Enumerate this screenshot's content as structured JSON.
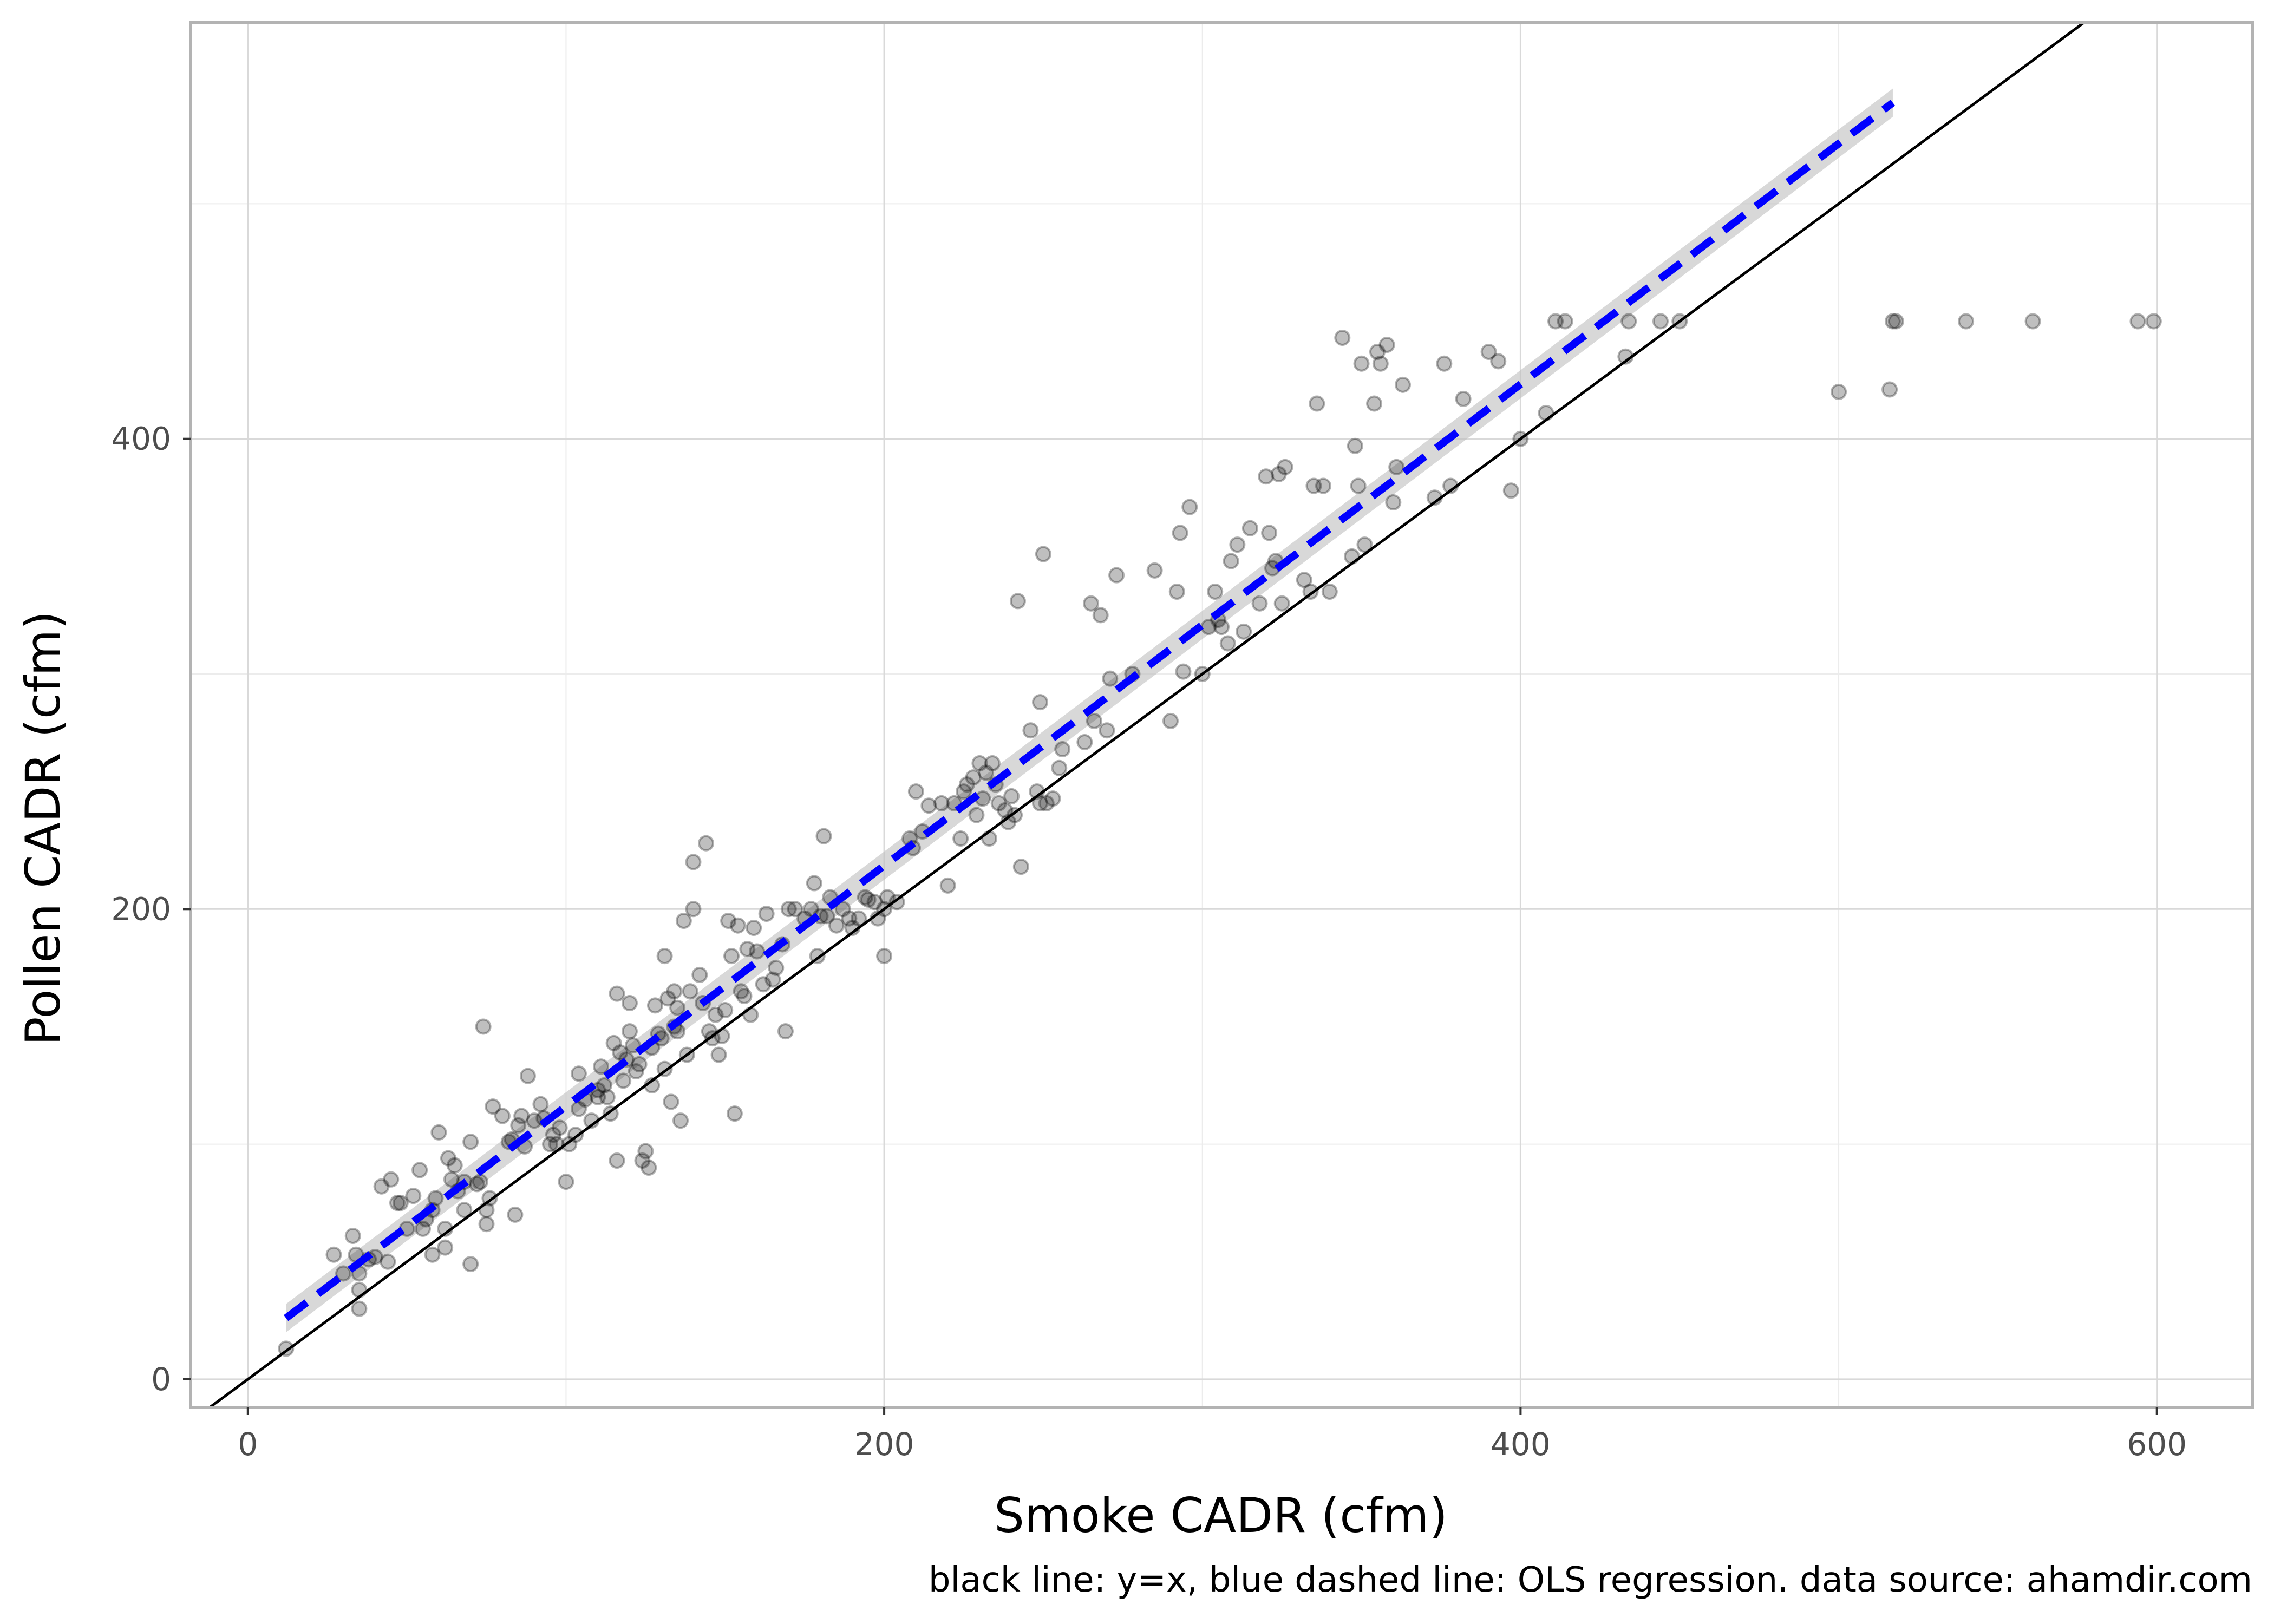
{
  "chart_data": {
    "type": "scatter",
    "xlabel": "Smoke CADR (cfm)",
    "ylabel": "Pollen CADR (cfm)",
    "caption": "black line: y=x, blue dashed line: OLS regression. data source: ahamdir.com",
    "xlim": [
      -18,
      630
    ],
    "ylim": [
      -12,
      577
    ],
    "x_ticks": [
      0,
      200,
      400,
      600
    ],
    "x_tick_labels": [
      "0",
      "200",
      "400",
      "600"
    ],
    "y_ticks": [
      0,
      200,
      400
    ],
    "y_tick_labels": [
      "0",
      "200",
      "400"
    ],
    "x_minor": [
      100,
      300,
      500
    ],
    "y_minor": [
      100,
      300,
      500
    ],
    "grid": true,
    "colors": {
      "points": "#000000",
      "identity_line": "#000000",
      "regression": "#0000ff",
      "confidence_band": "#bebebe",
      "grid": "#d9d9d9",
      "panel_border": "#b3b3b3"
    },
    "point_alpha": 0.25,
    "reference_lines": [
      {
        "label": "y=x",
        "x": [
          -18,
          577
        ],
        "y": [
          -18,
          577
        ],
        "style": "solid"
      },
      {
        "label": "OLS regression",
        "x": [
          12,
          517
        ],
        "y": [
          26,
          543
        ],
        "style": "dashed",
        "band": 6
      }
    ],
    "points": [
      [
        12,
        13
      ],
      [
        27,
        53
      ],
      [
        30,
        45
      ],
      [
        33,
        61
      ],
      [
        34,
        53
      ],
      [
        35,
        45
      ],
      [
        35,
        38
      ],
      [
        35,
        30
      ],
      [
        38,
        51
      ],
      [
        40,
        52
      ],
      [
        42,
        82
      ],
      [
        44,
        50
      ],
      [
        45,
        85
      ],
      [
        47,
        75
      ],
      [
        48,
        75
      ],
      [
        50,
        64
      ],
      [
        52,
        78
      ],
      [
        54,
        89
      ],
      [
        55,
        64
      ],
      [
        56,
        68
      ],
      [
        58,
        72
      ],
      [
        58,
        53
      ],
      [
        59,
        77
      ],
      [
        60,
        105
      ],
      [
        62,
        56
      ],
      [
        62,
        64
      ],
      [
        63,
        94
      ],
      [
        64,
        85
      ],
      [
        65,
        91
      ],
      [
        66,
        80
      ],
      [
        68,
        72
      ],
      [
        68,
        84
      ],
      [
        70,
        101
      ],
      [
        70,
        49
      ],
      [
        72,
        83
      ],
      [
        73,
        84
      ],
      [
        74,
        150
      ],
      [
        75,
        72
      ],
      [
        75,
        66
      ],
      [
        76,
        77
      ],
      [
        77,
        116
      ],
      [
        80,
        112
      ],
      [
        82,
        101
      ],
      [
        83,
        102
      ],
      [
        84,
        70
      ],
      [
        85,
        108
      ],
      [
        86,
        112
      ],
      [
        87,
        99
      ],
      [
        88,
        129
      ],
      [
        90,
        110
      ],
      [
        92,
        117
      ],
      [
        93,
        111
      ],
      [
        95,
        100
      ],
      [
        96,
        104
      ],
      [
        97,
        100
      ],
      [
        98,
        107
      ],
      [
        100,
        84
      ],
      [
        101,
        100
      ],
      [
        103,
        104
      ],
      [
        104,
        130
      ],
      [
        104,
        115
      ],
      [
        106,
        119
      ],
      [
        108,
        110
      ],
      [
        110,
        120
      ],
      [
        110,
        123
      ],
      [
        111,
        133
      ],
      [
        112,
        125
      ],
      [
        113,
        120
      ],
      [
        114,
        113
      ],
      [
        115,
        143
      ],
      [
        116,
        164
      ],
      [
        116,
        93
      ],
      [
        117,
        139
      ],
      [
        118,
        127
      ],
      [
        119,
        136
      ],
      [
        120,
        148
      ],
      [
        120,
        160
      ],
      [
        121,
        142
      ],
      [
        122,
        131
      ],
      [
        123,
        134
      ],
      [
        124,
        93
      ],
      [
        125,
        97
      ],
      [
        126,
        90
      ],
      [
        127,
        125
      ],
      [
        127,
        141
      ],
      [
        128,
        159
      ],
      [
        129,
        147
      ],
      [
        130,
        145
      ],
      [
        131,
        132
      ],
      [
        131,
        180
      ],
      [
        132,
        162
      ],
      [
        133,
        118
      ],
      [
        134,
        150
      ],
      [
        134,
        165
      ],
      [
        135,
        158
      ],
      [
        135,
        148
      ],
      [
        136,
        110
      ],
      [
        137,
        195
      ],
      [
        138,
        138
      ],
      [
        139,
        165
      ],
      [
        140,
        200
      ],
      [
        140,
        220
      ],
      [
        142,
        172
      ],
      [
        143,
        160
      ],
      [
        144,
        228
      ],
      [
        145,
        148
      ],
      [
        146,
        145
      ],
      [
        147,
        155
      ],
      [
        148,
        138
      ],
      [
        149,
        146
      ],
      [
        150,
        157
      ],
      [
        151,
        195
      ],
      [
        152,
        180
      ],
      [
        153,
        113
      ],
      [
        154,
        193
      ],
      [
        155,
        165
      ],
      [
        156,
        163
      ],
      [
        157,
        183
      ],
      [
        158,
        155
      ],
      [
        159,
        192
      ],
      [
        160,
        182
      ],
      [
        162,
        168
      ],
      [
        163,
        198
      ],
      [
        165,
        170
      ],
      [
        166,
        175
      ],
      [
        168,
        185
      ],
      [
        169,
        148
      ],
      [
        170,
        200
      ],
      [
        172,
        200
      ],
      [
        175,
        196
      ],
      [
        177,
        200
      ],
      [
        178,
        211
      ],
      [
        179,
        180
      ],
      [
        180,
        197
      ],
      [
        181,
        231
      ],
      [
        182,
        197
      ],
      [
        183,
        205
      ],
      [
        185,
        193
      ],
      [
        187,
        200
      ],
      [
        189,
        196
      ],
      [
        190,
        192
      ],
      [
        192,
        196
      ],
      [
        194,
        205
      ],
      [
        195,
        204
      ],
      [
        197,
        203
      ],
      [
        198,
        196
      ],
      [
        200,
        180
      ],
      [
        200,
        200
      ],
      [
        201,
        205
      ],
      [
        204,
        203
      ],
      [
        208,
        230
      ],
      [
        209,
        226
      ],
      [
        210,
        250
      ],
      [
        212,
        233
      ],
      [
        214,
        244
      ],
      [
        218,
        245
      ],
      [
        220,
        210
      ],
      [
        222,
        245
      ],
      [
        224,
        230
      ],
      [
        225,
        250
      ],
      [
        226,
        253
      ],
      [
        228,
        256
      ],
      [
        229,
        240
      ],
      [
        230,
        262
      ],
      [
        231,
        247
      ],
      [
        232,
        258
      ],
      [
        233,
        230
      ],
      [
        234,
        262
      ],
      [
        235,
        253
      ],
      [
        236,
        245
      ],
      [
        238,
        242
      ],
      [
        239,
        237
      ],
      [
        240,
        248
      ],
      [
        241,
        240
      ],
      [
        242,
        331
      ],
      [
        243,
        218
      ],
      [
        246,
        276
      ],
      [
        248,
        250
      ],
      [
        249,
        245
      ],
      [
        249,
        288
      ],
      [
        250,
        351
      ],
      [
        251,
        245
      ],
      [
        253,
        247
      ],
      [
        255,
        260
      ],
      [
        256,
        268
      ],
      [
        263,
        271
      ],
      [
        265,
        330
      ],
      [
        266,
        280
      ],
      [
        268,
        325
      ],
      [
        270,
        276
      ],
      [
        271,
        298
      ],
      [
        273,
        342
      ],
      [
        278,
        300
      ],
      [
        285,
        344
      ],
      [
        290,
        280
      ],
      [
        292,
        335
      ],
      [
        293,
        360
      ],
      [
        294,
        301
      ],
      [
        296,
        371
      ],
      [
        300,
        300
      ],
      [
        302,
        320
      ],
      [
        304,
        335
      ],
      [
        305,
        323
      ],
      [
        306,
        320
      ],
      [
        308,
        313
      ],
      [
        309,
        348
      ],
      [
        311,
        355
      ],
      [
        313,
        318
      ],
      [
        315,
        362
      ],
      [
        318,
        330
      ],
      [
        320,
        384
      ],
      [
        321,
        360
      ],
      [
        322,
        345
      ],
      [
        323,
        348
      ],
      [
        324,
        385
      ],
      [
        325,
        330
      ],
      [
        326,
        388
      ],
      [
        332,
        340
      ],
      [
        334,
        335
      ],
      [
        335,
        380
      ],
      [
        336,
        415
      ],
      [
        338,
        380
      ],
      [
        340,
        335
      ],
      [
        344,
        443
      ],
      [
        347,
        350
      ],
      [
        348,
        397
      ],
      [
        349,
        380
      ],
      [
        350,
        432
      ],
      [
        351,
        355
      ],
      [
        354,
        415
      ],
      [
        355,
        437
      ],
      [
        356,
        432
      ],
      [
        358,
        440
      ],
      [
        360,
        373
      ],
      [
        361,
        388
      ],
      [
        363,
        423
      ],
      [
        373,
        375
      ],
      [
        376,
        432
      ],
      [
        378,
        380
      ],
      [
        382,
        417
      ],
      [
        390,
        437
      ],
      [
        393,
        433
      ],
      [
        397,
        378
      ],
      [
        400,
        400
      ],
      [
        408,
        411
      ],
      [
        411,
        450
      ],
      [
        414,
        450
      ],
      [
        433,
        435
      ],
      [
        434,
        450
      ],
      [
        444,
        450
      ],
      [
        450,
        450
      ],
      [
        500,
        420
      ],
      [
        516,
        421
      ],
      [
        517,
        450
      ],
      [
        518,
        450
      ],
      [
        540,
        450
      ],
      [
        561,
        450
      ],
      [
        594,
        450
      ],
      [
        599,
        450
      ]
    ]
  }
}
